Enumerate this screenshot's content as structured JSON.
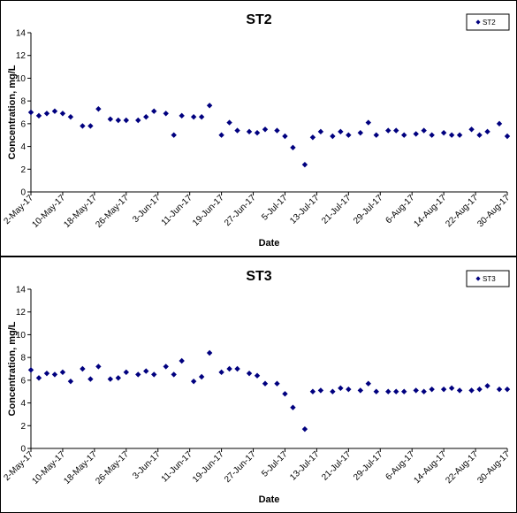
{
  "chart_data": [
    {
      "type": "scatter",
      "title": "ST2",
      "xlabel": "Date",
      "ylabel": "Concentration, mg/L",
      "ylim": [
        0,
        14
      ],
      "y_ticks": [
        "0",
        "2",
        "4",
        "6",
        "8",
        "10",
        "12",
        "14"
      ],
      "x_range": [
        "2017-05-02",
        "2017-08-30"
      ],
      "x_tick_labels": [
        "2-May-17",
        "10-May-17",
        "18-May-17",
        "26-May-17",
        "3-Jun-17",
        "11-Jun-17",
        "19-Jun-17",
        "27-Jun-17",
        "5-Jul-17",
        "13-Jul-17",
        "21-Jul-17",
        "29-Jul-17",
        "6-Aug-17",
        "14-Aug-17",
        "22-Aug-17",
        "30-Aug-17"
      ],
      "x_tick_dates": [
        "2017-05-02",
        "2017-05-10",
        "2017-05-18",
        "2017-05-26",
        "2017-06-03",
        "2017-06-11",
        "2017-06-19",
        "2017-06-27",
        "2017-07-05",
        "2017-07-13",
        "2017-07-21",
        "2017-07-29",
        "2017-08-06",
        "2017-08-14",
        "2017-08-22",
        "2017-08-30"
      ],
      "legend_position": "top-right",
      "grid": false,
      "marker_color": "#00007F",
      "series": [
        {
          "name": "ST2",
          "x": [
            "2017-05-02",
            "2017-05-04",
            "2017-05-06",
            "2017-05-08",
            "2017-05-10",
            "2017-05-12",
            "2017-05-15",
            "2017-05-17",
            "2017-05-19",
            "2017-05-22",
            "2017-05-24",
            "2017-05-26",
            "2017-05-29",
            "2017-05-31",
            "2017-06-02",
            "2017-06-05",
            "2017-06-07",
            "2017-06-09",
            "2017-06-12",
            "2017-06-14",
            "2017-06-16",
            "2017-06-19",
            "2017-06-21",
            "2017-06-23",
            "2017-06-26",
            "2017-06-28",
            "2017-06-30",
            "2017-07-03",
            "2017-07-05",
            "2017-07-07",
            "2017-07-10",
            "2017-07-12",
            "2017-07-14",
            "2017-07-17",
            "2017-07-19",
            "2017-07-21",
            "2017-07-24",
            "2017-07-26",
            "2017-07-28",
            "2017-07-31",
            "2017-08-02",
            "2017-08-04",
            "2017-08-07",
            "2017-08-09",
            "2017-08-11",
            "2017-08-14",
            "2017-08-16",
            "2017-08-18",
            "2017-08-21",
            "2017-08-23",
            "2017-08-25",
            "2017-08-28",
            "2017-08-30"
          ],
          "y": [
            7.0,
            6.7,
            6.9,
            7.1,
            6.9,
            6.6,
            5.8,
            5.8,
            7.3,
            6.4,
            6.3,
            6.3,
            6.3,
            6.6,
            7.1,
            6.9,
            5.0,
            6.7,
            6.6,
            6.6,
            7.6,
            5.0,
            6.1,
            5.4,
            5.3,
            5.2,
            5.5,
            5.4,
            4.9,
            3.9,
            2.4,
            4.8,
            5.3,
            4.9,
            5.3,
            5.0,
            5.2,
            6.1,
            5.0,
            5.4,
            5.4,
            5.0,
            5.1,
            5.4,
            5.0,
            5.2,
            5.0,
            5.0,
            5.5,
            5.0,
            5.3,
            6.0,
            4.9
          ]
        }
      ]
    },
    {
      "type": "scatter",
      "title": "ST3",
      "xlabel": "Date",
      "ylabel": "Concentration, mg/L",
      "ylim": [
        0,
        14
      ],
      "y_ticks": [
        "0",
        "2",
        "4",
        "6",
        "8",
        "10",
        "12",
        "14"
      ],
      "x_range": [
        "2017-05-02",
        "2017-08-30"
      ],
      "x_tick_labels": [
        "2-May-17",
        "10-May-17",
        "18-May-17",
        "26-May-17",
        "3-Jun-17",
        "11-Jun-17",
        "19-Jun-17",
        "27-Jun-17",
        "5-Jul-17",
        "13-Jul-17",
        "21-Jul-17",
        "29-Jul-17",
        "6-Aug-17",
        "14-Aug-17",
        "22-Aug-17",
        "30-Aug-17"
      ],
      "x_tick_dates": [
        "2017-05-02",
        "2017-05-10",
        "2017-05-18",
        "2017-05-26",
        "2017-06-03",
        "2017-06-11",
        "2017-06-19",
        "2017-06-27",
        "2017-07-05",
        "2017-07-13",
        "2017-07-21",
        "2017-07-29",
        "2017-08-06",
        "2017-08-14",
        "2017-08-22",
        "2017-08-30"
      ],
      "legend_position": "top-right",
      "grid": false,
      "marker_color": "#00007F",
      "series": [
        {
          "name": "ST3",
          "x": [
            "2017-05-02",
            "2017-05-04",
            "2017-05-06",
            "2017-05-08",
            "2017-05-10",
            "2017-05-12",
            "2017-05-15",
            "2017-05-17",
            "2017-05-19",
            "2017-05-22",
            "2017-05-24",
            "2017-05-26",
            "2017-05-29",
            "2017-05-31",
            "2017-06-02",
            "2017-06-05",
            "2017-06-07",
            "2017-06-09",
            "2017-06-12",
            "2017-06-14",
            "2017-06-16",
            "2017-06-19",
            "2017-06-21",
            "2017-06-23",
            "2017-06-26",
            "2017-06-28",
            "2017-06-30",
            "2017-07-03",
            "2017-07-05",
            "2017-07-07",
            "2017-07-10",
            "2017-07-12",
            "2017-07-14",
            "2017-07-17",
            "2017-07-19",
            "2017-07-21",
            "2017-07-24",
            "2017-07-26",
            "2017-07-28",
            "2017-07-31",
            "2017-08-02",
            "2017-08-04",
            "2017-08-07",
            "2017-08-09",
            "2017-08-11",
            "2017-08-14",
            "2017-08-16",
            "2017-08-18",
            "2017-08-21",
            "2017-08-23",
            "2017-08-25",
            "2017-08-28",
            "2017-08-30"
          ],
          "y": [
            6.9,
            6.2,
            6.6,
            6.5,
            6.7,
            5.9,
            7.0,
            6.1,
            7.2,
            6.1,
            6.2,
            6.7,
            6.5,
            6.8,
            6.5,
            7.2,
            6.5,
            7.7,
            5.9,
            6.3,
            8.4,
            6.7,
            7.0,
            7.0,
            6.6,
            6.4,
            5.7,
            5.7,
            4.8,
            3.6,
            1.7,
            5.0,
            5.1,
            5.0,
            5.3,
            5.2,
            5.1,
            5.7,
            5.0,
            5.0,
            5.0,
            5.0,
            5.1,
            5.0,
            5.2,
            5.2,
            5.3,
            5.1,
            5.1,
            5.2,
            5.5,
            5.2,
            5.2
          ]
        }
      ]
    }
  ]
}
